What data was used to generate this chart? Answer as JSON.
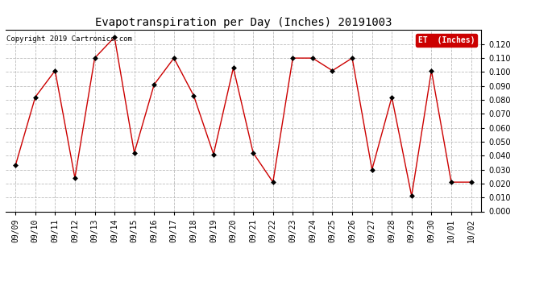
{
  "title": "Evapotranspiration per Day (Inches) 20191003",
  "copyright": "Copyright 2019 Cartronics.com",
  "legend_label": "ET  (Inches)",
  "x_labels": [
    "09/09",
    "09/10",
    "09/11",
    "09/12",
    "09/13",
    "09/14",
    "09/15",
    "09/16",
    "09/17",
    "09/18",
    "09/19",
    "09/20",
    "09/21",
    "09/22",
    "09/23",
    "09/24",
    "09/25",
    "09/26",
    "09/27",
    "09/28",
    "09/29",
    "09/30",
    "10/01",
    "10/02"
  ],
  "y_values": [
    0.033,
    0.082,
    0.101,
    0.024,
    0.11,
    0.125,
    0.042,
    0.091,
    0.11,
    0.083,
    0.041,
    0.103,
    0.042,
    0.021,
    0.11,
    0.11,
    0.101,
    0.11,
    0.03,
    0.082,
    0.011,
    0.101,
    0.021,
    0.021
  ],
  "line_color": "#cc0000",
  "marker": "D",
  "marker_size": 3,
  "marker_color": "#000000",
  "ylim": [
    0.0,
    0.13
  ],
  "yticks": [
    0.0,
    0.01,
    0.02,
    0.03,
    0.04,
    0.05,
    0.06,
    0.07,
    0.08,
    0.09,
    0.1,
    0.11,
    0.12
  ],
  "background_color": "#ffffff",
  "grid_color": "#bbbbbb",
  "title_fontsize": 10,
  "copyright_fontsize": 6.5,
  "tick_fontsize": 7,
  "legend_fontsize": 7,
  "legend_bg": "#cc0000",
  "legend_fg": "#ffffff"
}
